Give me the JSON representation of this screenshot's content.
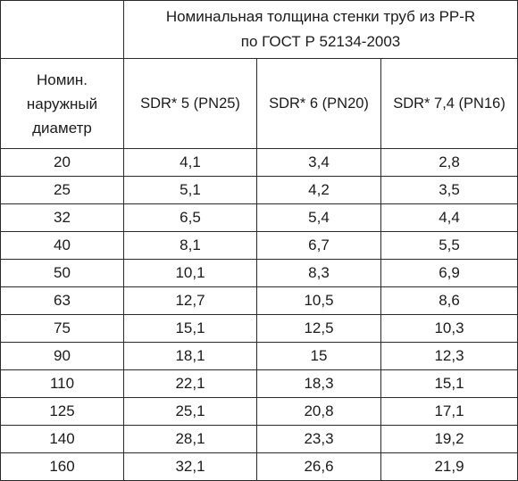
{
  "header": {
    "title_line1": "Номинальная толщина стенки труб из PP-R",
    "title_line2": "по ГОСТ Р 52134-2003",
    "diameter_line1": "Номин.",
    "diameter_line2": "наружный",
    "diameter_line3": "диаметр",
    "columns": [
      "SDR* 5 (PN25)",
      "SDR* 6 (PN20)",
      "SDR* 7,4 (PN16)"
    ]
  },
  "rows": [
    [
      "20",
      "4,1",
      "3,4",
      "2,8"
    ],
    [
      "25",
      "5,1",
      "4,2",
      "3,5"
    ],
    [
      "32",
      "6,5",
      "5,4",
      "4,4"
    ],
    [
      "40",
      "8,1",
      "6,7",
      "5,5"
    ],
    [
      "50",
      "10,1",
      "8,3",
      "6,9"
    ],
    [
      "63",
      "12,7",
      "10,5",
      "8,6"
    ],
    [
      "75",
      "15,1",
      "12,5",
      "10,3"
    ],
    [
      "90",
      "18,1",
      "15",
      "12,3"
    ],
    [
      "110",
      "22,1",
      "18,3",
      "15,1"
    ],
    [
      "125",
      "25,1",
      "20,8",
      "17,1"
    ],
    [
      "140",
      "28,1",
      "23,3",
      "19,2"
    ],
    [
      "160",
      "32,1",
      "26,6",
      "21,9"
    ]
  ]
}
